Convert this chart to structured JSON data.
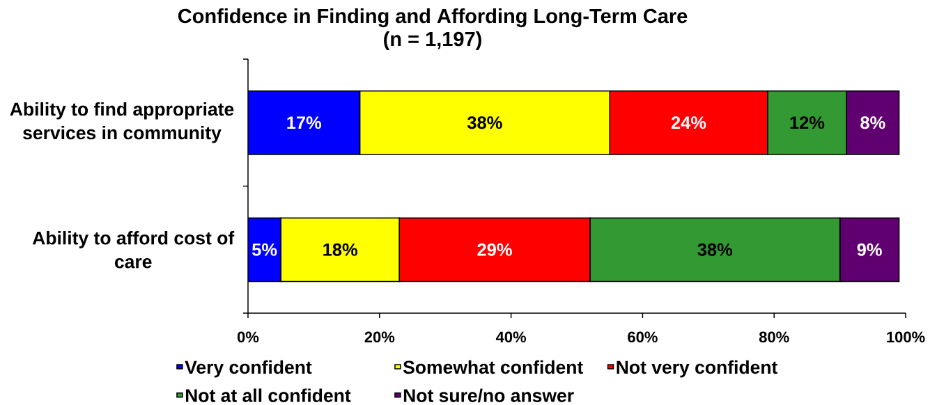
{
  "chart_data": {
    "type": "bar",
    "orientation": "horizontal",
    "stacked": true,
    "title": "Confidence in Finding and Affording Long-Term Care",
    "subtitle": "(n = 1,197)",
    "categories": [
      "Ability to find appropriate services in community",
      "Ability to afford cost of care"
    ],
    "series": [
      {
        "name": "Very confident",
        "color": "#0000ff",
        "values": [
          17,
          5
        ],
        "value_labels": [
          "17%",
          "5%"
        ]
      },
      {
        "name": "Somewhat confident",
        "color": "#ffff00",
        "values": [
          38,
          18
        ],
        "value_labels": [
          "38%",
          "18%"
        ]
      },
      {
        "name": "Not very confident",
        "color": "#ff0000",
        "values": [
          24,
          29
        ],
        "value_labels": [
          "24%",
          "29%"
        ]
      },
      {
        "name": "Not at all confident",
        "color": "#339933",
        "values": [
          12,
          38
        ],
        "value_labels": [
          "12%",
          "38%"
        ]
      },
      {
        "name": "Not sure/no answer",
        "color": "#600070",
        "values": [
          8,
          9
        ],
        "value_labels": [
          "8%",
          "9%"
        ]
      }
    ],
    "xlim": [
      0,
      100
    ],
    "xticks": [
      {
        "value": 0,
        "label": "0%"
      },
      {
        "value": 20,
        "label": "20%"
      },
      {
        "value": 40,
        "label": "40%"
      },
      {
        "value": 60,
        "label": "60%"
      },
      {
        "value": 80,
        "label": "80%"
      },
      {
        "value": 100,
        "label": "100%"
      }
    ],
    "legend": "bottom"
  }
}
